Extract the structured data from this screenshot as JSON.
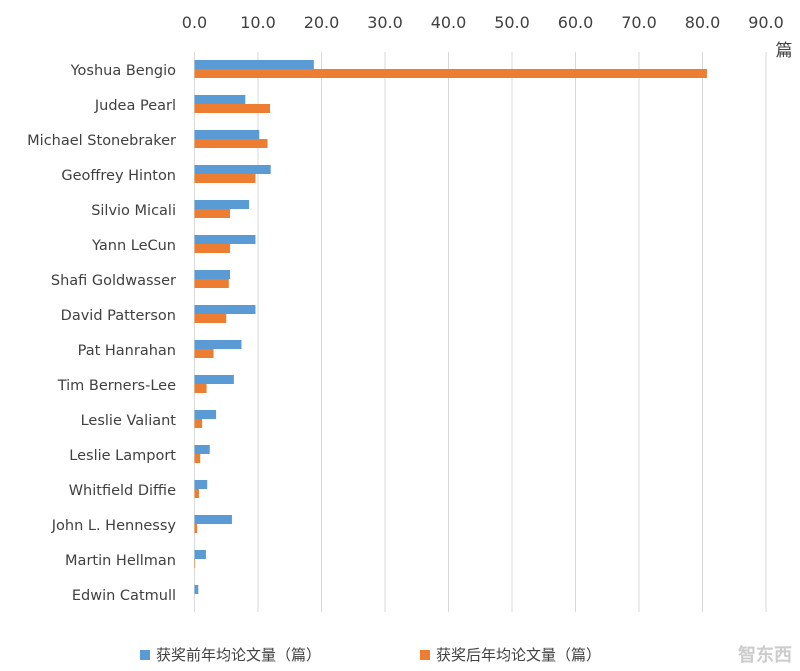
{
  "chart_data": {
    "type": "bar",
    "orientation": "horizontal",
    "categories": [
      "Yoshua Bengio",
      "Judea Pearl",
      "Michael Stonebraker",
      "Geoffrey Hinton",
      "Silvio Micali",
      "Yann LeCun",
      "Shafi Goldwasser",
      "David Patterson",
      "Pat Hanrahan",
      "Tim Berners-Lee",
      "Leslie Valiant",
      "Leslie Lamport",
      "Whitfield Diffie",
      "John L. Hennessy",
      "Martin Hellman",
      "Edwin Catmull"
    ],
    "series": [
      {
        "name": "获奖前年均论文量（篇）",
        "color": "#5B9BD5",
        "values": [
          18.8,
          8.0,
          10.2,
          12.0,
          8.6,
          9.6,
          5.6,
          9.6,
          7.4,
          6.2,
          3.4,
          2.4,
          2.0,
          5.9,
          1.8,
          0.6
        ]
      },
      {
        "name": "获奖后年均论文量（篇）",
        "color": "#ED7D31",
        "values": [
          80.7,
          11.9,
          11.5,
          9.6,
          5.6,
          5.6,
          5.4,
          5.0,
          3.0,
          1.9,
          1.2,
          0.9,
          0.7,
          0.4,
          0.1,
          0.0
        ]
      }
    ],
    "xlim": [
      0,
      90
    ],
    "ticks": [
      "0.0",
      "10.0",
      "20.0",
      "30.0",
      "40.0",
      "50.0",
      "60.0",
      "70.0",
      "80.0",
      "90.0"
    ],
    "xlabel": "篇",
    "grid": true,
    "legend": "bottom"
  },
  "watermark": "智东西"
}
